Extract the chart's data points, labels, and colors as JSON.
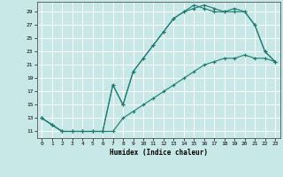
{
  "xlabel": "Humidex (Indice chaleur)",
  "background_color": "#c8e8e8",
  "grid_color": "#ffffff",
  "line_color": "#1a7a6e",
  "xlim": [
    -0.5,
    23.5
  ],
  "ylim": [
    10.0,
    30.5
  ],
  "yticks": [
    11,
    13,
    15,
    17,
    19,
    21,
    23,
    25,
    27,
    29
  ],
  "xticks": [
    0,
    1,
    2,
    3,
    4,
    5,
    6,
    7,
    8,
    9,
    10,
    11,
    12,
    13,
    14,
    15,
    16,
    17,
    18,
    19,
    20,
    21,
    22,
    23
  ],
  "line1_x": [
    0,
    1,
    2,
    3,
    4,
    5,
    6,
    7,
    8,
    9,
    10,
    11,
    12,
    13,
    14,
    15,
    16,
    17,
    18,
    19,
    20,
    21,
    22,
    23
  ],
  "line1_y": [
    13,
    12,
    11,
    11,
    11,
    11,
    11,
    18,
    15,
    20,
    22,
    24,
    26,
    28,
    29,
    30,
    29.5,
    29,
    29,
    29,
    29,
    27,
    23,
    21.5
  ],
  "line2_x": [
    0,
    1,
    2,
    3,
    4,
    5,
    6,
    7,
    8,
    9,
    10,
    11,
    12,
    13,
    14,
    15,
    16,
    17,
    18,
    19,
    20,
    21,
    22,
    23
  ],
  "line2_y": [
    13,
    12,
    11,
    11,
    11,
    11,
    11,
    18,
    15,
    20,
    22,
    24,
    26,
    28,
    29,
    29.5,
    30,
    29.5,
    29,
    29.5,
    29,
    27,
    23,
    21.5
  ],
  "line3_x": [
    0,
    1,
    2,
    3,
    4,
    5,
    6,
    7,
    8,
    9,
    10,
    11,
    12,
    13,
    14,
    15,
    16,
    17,
    18,
    19,
    20,
    21,
    22,
    23
  ],
  "line3_y": [
    13,
    12,
    11,
    11,
    11,
    11,
    11,
    11,
    13,
    14,
    15,
    16,
    17,
    18,
    19,
    20,
    21,
    21.5,
    22,
    22,
    22.5,
    22,
    22,
    21.5
  ]
}
